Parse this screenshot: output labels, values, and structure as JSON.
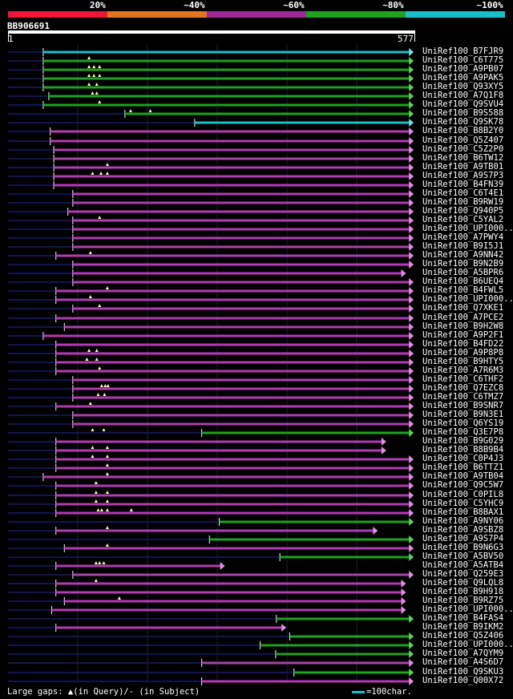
{
  "legend": {
    "segments": [
      {
        "label": "20%",
        "color": "#e8193a"
      },
      {
        "label": "~40%",
        "color": "#e6741c"
      },
      {
        "label": "~60%",
        "color": "#9b2a96"
      },
      {
        "label": "~80%",
        "color": "#1fa01f"
      },
      {
        "label": "~100%",
        "color": "#19c0c8"
      }
    ]
  },
  "query": {
    "id": "BB906691",
    "start": "1",
    "end": "577"
  },
  "colors": {
    "magenta": "#b13cb1",
    "green": "#22a022",
    "cyan": "#19c0c8",
    "navy": "#141450",
    "grid": "#1e1e3c",
    "arrow_magenta": "#e090e0",
    "arrow_green": "#5ed25e",
    "arrow_cyan": "#7ee0e6"
  },
  "hits": [
    {
      "id": "UniRef100_B7FJR9",
      "color": "cyan",
      "qs": 50,
      "qe": 576,
      "ss": 1,
      "se": 580,
      "marks": []
    },
    {
      "id": "UniRef100_C6T775",
      "color": "green",
      "qs": 50,
      "qe": 576,
      "ss": 1,
      "se": 580,
      "marks": [
        115
      ]
    },
    {
      "id": "UniRef100_A9PB07",
      "color": "green",
      "qs": 50,
      "qe": 576,
      "ss": 1,
      "se": 580,
      "marks": [
        115,
        122,
        130
      ]
    },
    {
      "id": "UniRef100_A9PAK5",
      "color": "green",
      "qs": 50,
      "qe": 576,
      "ss": 1,
      "se": 580,
      "marks": [
        115,
        122,
        130
      ]
    },
    {
      "id": "UniRef100_Q93XY5",
      "color": "green",
      "qs": 50,
      "qe": 576,
      "ss": 1,
      "se": 580,
      "marks": [
        115,
        126
      ]
    },
    {
      "id": "UniRef100_A7Q1F8",
      "color": "green",
      "qs": 58,
      "qe": 576,
      "ss": 1,
      "se": 580,
      "marks": [
        120,
        126
      ]
    },
    {
      "id": "UniRef100_Q9SVU4",
      "color": "green",
      "qs": 50,
      "qe": 576,
      "ss": 1,
      "se": 580,
      "marks": [
        130
      ]
    },
    {
      "id": "UniRef100_B9S588",
      "color": "green",
      "qs": 166,
      "qe": 576,
      "ss": 1,
      "se": 580,
      "marks": [
        174,
        202
      ]
    },
    {
      "id": "UniRef100_Q9SK78",
      "color": "cyan",
      "qs": 265,
      "qe": 576,
      "ss": 1,
      "se": 580,
      "marks": []
    },
    {
      "id": "UniRef100_B8B2Y0",
      "color": "magenta",
      "qs": 60,
      "qe": 576,
      "ss": 1,
      "se": 580,
      "marks": []
    },
    {
      "id": "UniRef100_Q5Z407",
      "color": "magenta",
      "qs": 60,
      "qe": 576,
      "ss": 1,
      "se": 580,
      "marks": []
    },
    {
      "id": "UniRef100_C5Z2P0",
      "color": "magenta",
      "qs": 65,
      "qe": 576,
      "ss": 1,
      "se": 580,
      "marks": []
    },
    {
      "id": "UniRef100_B6TW12",
      "color": "magenta",
      "qs": 65,
      "qe": 576,
      "ss": 1,
      "se": 580,
      "marks": []
    },
    {
      "id": "UniRef100_A9TB01",
      "color": "magenta",
      "qs": 65,
      "qe": 576,
      "ss": 1,
      "se": 580,
      "marks": [
        141
      ]
    },
    {
      "id": "UniRef100_A9S7P3",
      "color": "magenta",
      "qs": 65,
      "qe": 576,
      "ss": 1,
      "se": 580,
      "marks": [
        120,
        132,
        141
      ]
    },
    {
      "id": "UniRef100_B4FN39",
      "color": "magenta",
      "qs": 65,
      "qe": 576,
      "ss": 1,
      "se": 580,
      "marks": []
    },
    {
      "id": "UniRef100_C6T4E1",
      "color": "magenta",
      "qs": 92,
      "qe": 576,
      "ss": 1,
      "se": 580,
      "marks": []
    },
    {
      "id": "UniRef100_B9RW19",
      "color": "magenta",
      "qs": 92,
      "qe": 576,
      "ss": 1,
      "se": 580,
      "marks": []
    },
    {
      "id": "UniRef100_Q940P5",
      "color": "magenta",
      "qs": 85,
      "qe": 576,
      "ss": 1,
      "se": 580,
      "marks": []
    },
    {
      "id": "UniRef100_C5YAL2",
      "color": "magenta",
      "qs": 92,
      "qe": 576,
      "ss": 1,
      "se": 580,
      "marks": [
        130
      ]
    },
    {
      "id": "UniRef100_UPI000..",
      "color": "magenta",
      "qs": 92,
      "qe": 576,
      "ss": 1,
      "se": 580,
      "marks": []
    },
    {
      "id": "UniRef100_A7PWY4",
      "color": "magenta",
      "qs": 92,
      "qe": 576,
      "ss": 1,
      "se": 580,
      "marks": []
    },
    {
      "id": "UniRef100_B9I5J1",
      "color": "magenta",
      "qs": 92,
      "qe": 576,
      "ss": 1,
      "se": 580,
      "marks": []
    },
    {
      "id": "UniRef100_A9NN42",
      "color": "magenta",
      "qs": 68,
      "qe": 576,
      "ss": 1,
      "se": 580,
      "marks": [
        117
      ]
    },
    {
      "id": "UniRef100_B9N2B9",
      "color": "magenta",
      "qs": 92,
      "qe": 576,
      "ss": 1,
      "se": 580,
      "marks": []
    },
    {
      "id": "UniRef100_A5BPR6",
      "color": "magenta",
      "qs": 92,
      "qe": 565,
      "ss": 1,
      "se": 580,
      "marks": []
    },
    {
      "id": "UniRef100_B6UEQ4",
      "color": "magenta",
      "qs": 92,
      "qe": 576,
      "ss": 1,
      "se": 580,
      "marks": []
    },
    {
      "id": "UniRef100_B4FWL5",
      "color": "magenta",
      "qs": 68,
      "qe": 576,
      "ss": 1,
      "se": 580,
      "marks": [
        141
      ]
    },
    {
      "id": "UniRef100_UPI000..",
      "color": "magenta",
      "qs": 68,
      "qe": 576,
      "ss": 1,
      "se": 580,
      "marks": [
        117
      ]
    },
    {
      "id": "UniRef100_Q7XKE1",
      "color": "magenta",
      "qs": 92,
      "qe": 576,
      "ss": 1,
      "se": 580,
      "marks": [
        130
      ]
    },
    {
      "id": "UniRef100_A7PCE2",
      "color": "magenta",
      "qs": 68,
      "qe": 576,
      "ss": 1,
      "se": 580,
      "marks": []
    },
    {
      "id": "UniRef100_B9H2W8",
      "color": "magenta",
      "qs": 80,
      "qe": 576,
      "ss": 1,
      "se": 580,
      "marks": []
    },
    {
      "id": "UniRef100_A9P2F1",
      "color": "magenta",
      "qs": 50,
      "qe": 576,
      "ss": 1,
      "se": 580,
      "marks": []
    },
    {
      "id": "UniRef100_B4FD22",
      "color": "magenta",
      "qs": 68,
      "qe": 576,
      "ss": 1,
      "se": 580,
      "marks": []
    },
    {
      "id": "UniRef100_A9P8P8",
      "color": "magenta",
      "qs": 68,
      "qe": 576,
      "ss": 1,
      "se": 580,
      "marks": [
        115,
        126
      ]
    },
    {
      "id": "UniRef100_B9HTY5",
      "color": "magenta",
      "qs": 68,
      "qe": 576,
      "ss": 1,
      "se": 580,
      "marks": [
        112,
        126
      ]
    },
    {
      "id": "UniRef100_A7R6M3",
      "color": "magenta",
      "qs": 68,
      "qe": 576,
      "ss": 1,
      "se": 580,
      "marks": [
        130
      ]
    },
    {
      "id": "UniRef100_C6THF2",
      "color": "magenta",
      "qs": 92,
      "qe": 576,
      "ss": 1,
      "se": 580,
      "marks": []
    },
    {
      "id": "UniRef100_Q7EZC8",
      "color": "magenta",
      "qs": 92,
      "qe": 576,
      "ss": 1,
      "se": 580,
      "marks": [
        133,
        138,
        142
      ]
    },
    {
      "id": "UniRef100_C6TMZ7",
      "color": "magenta",
      "qs": 92,
      "qe": 576,
      "ss": 1,
      "se": 580,
      "marks": [
        128,
        137
      ]
    },
    {
      "id": "UniRef100_B9SNR7",
      "color": "magenta",
      "qs": 68,
      "qe": 576,
      "ss": 1,
      "se": 580,
      "marks": [
        117
      ]
    },
    {
      "id": "UniRef100_B9N3E1",
      "color": "magenta",
      "qs": 92,
      "qe": 576,
      "ss": 1,
      "se": 580,
      "marks": []
    },
    {
      "id": "UniRef100_Q6YS19",
      "color": "magenta",
      "qs": 92,
      "qe": 576,
      "ss": 1,
      "se": 580,
      "marks": []
    },
    {
      "id": "UniRef100_Q3E7P8",
      "color": "green",
      "qs": 275,
      "qe": 576,
      "ss": 1,
      "se": 580,
      "marks": [
        120,
        136
      ]
    },
    {
      "id": "UniRef100_B9G029",
      "color": "magenta",
      "qs": 68,
      "qe": 537,
      "ss": 1,
      "se": 580,
      "marks": []
    },
    {
      "id": "UniRef100_B8B9B4",
      "color": "magenta",
      "qs": 68,
      "qe": 537,
      "ss": 1,
      "se": 580,
      "marks": [
        120,
        141
      ]
    },
    {
      "id": "UniRef100_C0P4J3",
      "color": "magenta",
      "qs": 68,
      "qe": 576,
      "ss": 1,
      "se": 580,
      "marks": [
        120,
        141
      ]
    },
    {
      "id": "UniRef100_B6TTZ1",
      "color": "magenta",
      "qs": 68,
      "qe": 576,
      "ss": 1,
      "se": 580,
      "marks": [
        141
      ]
    },
    {
      "id": "UniRef100_A9TB04",
      "color": "magenta",
      "qs": 50,
      "qe": 576,
      "ss": 1,
      "se": 580,
      "marks": [
        141
      ]
    },
    {
      "id": "UniRef100_Q9C5W7",
      "color": "magenta",
      "qs": 68,
      "qe": 576,
      "ss": 1,
      "se": 580,
      "marks": [
        125
      ]
    },
    {
      "id": "UniRef100_C0PIL8",
      "color": "magenta",
      "qs": 68,
      "qe": 576,
      "ss": 1,
      "se": 580,
      "marks": [
        125,
        141
      ]
    },
    {
      "id": "UniRef100_C5YHC9",
      "color": "magenta",
      "qs": 68,
      "qe": 576,
      "ss": 1,
      "se": 580,
      "marks": [
        125,
        141
      ]
    },
    {
      "id": "UniRef100_B8BAX1",
      "color": "magenta",
      "qs": 68,
      "qe": 576,
      "ss": 1,
      "se": 580,
      "marks": [
        128,
        133,
        141,
        175
      ]
    },
    {
      "id": "UniRef100_A9NY06",
      "color": "green",
      "qs": 300,
      "qe": 576,
      "ss": 1,
      "se": 580,
      "marks": []
    },
    {
      "id": "UniRef100_A9SBZ8",
      "color": "magenta",
      "qs": 68,
      "qe": 525,
      "ss": 1,
      "se": 580,
      "marks": [
        141
      ]
    },
    {
      "id": "UniRef100_A9S7P4",
      "color": "green",
      "qs": 286,
      "qe": 576,
      "ss": 1,
      "se": 580,
      "marks": []
    },
    {
      "id": "UniRef100_B9N6G3",
      "color": "magenta",
      "qs": 80,
      "qe": 576,
      "ss": 1,
      "se": 580,
      "marks": [
        141
      ]
    },
    {
      "id": "UniRef100_A5BV50",
      "color": "green",
      "qs": 386,
      "qe": 576,
      "ss": 1,
      "se": 580,
      "marks": []
    },
    {
      "id": "UniRef100_A5ATB4",
      "color": "magenta",
      "qs": 68,
      "qe": 308,
      "ss": 1,
      "se": 580,
      "marks": [
        125,
        130,
        136
      ]
    },
    {
      "id": "UniRef100_Q259E3",
      "color": "magenta",
      "qs": 92,
      "qe": 576,
      "ss": 1,
      "se": 580,
      "marks": []
    },
    {
      "id": "UniRef100_Q9LQL8",
      "color": "magenta",
      "qs": 68,
      "qe": 565,
      "ss": 1,
      "se": 580,
      "marks": [
        125
      ]
    },
    {
      "id": "UniRef100_B9H918",
      "color": "magenta",
      "qs": 68,
      "qe": 565,
      "ss": 1,
      "se": 580,
      "marks": []
    },
    {
      "id": "UniRef100_B9RZ75",
      "color": "magenta",
      "qs": 80,
      "qe": 565,
      "ss": 1,
      "se": 580,
      "marks": [
        158
      ]
    },
    {
      "id": "UniRef100_UPI000..",
      "color": "magenta",
      "qs": 62,
      "qe": 565,
      "ss": 1,
      "se": 580,
      "marks": []
    },
    {
      "id": "UniRef100_B4FAS4",
      "color": "green",
      "qs": 381,
      "qe": 576,
      "ss": 1,
      "se": 580,
      "marks": []
    },
    {
      "id": "UniRef100_B9IKM2",
      "color": "magenta",
      "qs": 68,
      "qe": 395,
      "ss": 1,
      "se": 580,
      "marks": []
    },
    {
      "id": "UniRef100_Q5Z406",
      "color": "green",
      "qs": 400,
      "qe": 576,
      "ss": 1,
      "se": 580,
      "marks": []
    },
    {
      "id": "UniRef100_UPI000..",
      "color": "green",
      "qs": 358,
      "qe": 576,
      "ss": 1,
      "se": 580,
      "marks": []
    },
    {
      "id": "UniRef100_A7QYM9",
      "color": "green",
      "qs": 380,
      "qe": 576,
      "ss": 1,
      "se": 580,
      "marks": []
    },
    {
      "id": "UniRef100_A4S6D7",
      "color": "magenta",
      "qs": 275,
      "qe": 576,
      "ss": 1,
      "se": 580,
      "marks": []
    },
    {
      "id": "UniRef100_Q9SKU3",
      "color": "green",
      "qs": 406,
      "qe": 576,
      "ss": 1,
      "se": 580,
      "marks": []
    },
    {
      "id": "UniRef100_Q00X72",
      "color": "magenta",
      "qs": 275,
      "qe": 576,
      "ss": 1,
      "se": 580,
      "marks": []
    }
  ],
  "footer": {
    "gap_text": "Large gaps: ",
    "in_query": "(in Query)/",
    "dash": "-",
    "in_subject": " (in Subject)",
    "scale_text": "=100char."
  }
}
